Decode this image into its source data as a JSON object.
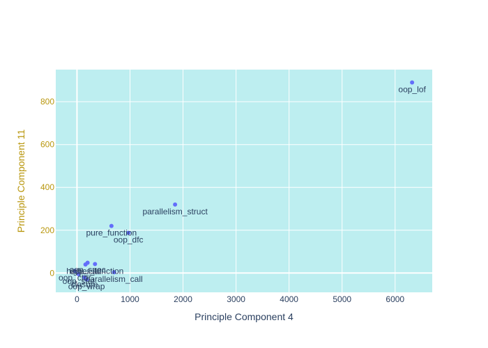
{
  "chart_data": {
    "type": "scatter",
    "xlabel": "Principle Component 4",
    "ylabel": "Principle Component 11",
    "xlim": [
      -400,
      6700
    ],
    "ylim": [
      -90,
      950
    ],
    "x_ticks": [
      0,
      1000,
      2000,
      3000,
      4000,
      5000,
      6000
    ],
    "y_ticks": [
      0,
      200,
      400,
      600,
      800
    ],
    "grid": true,
    "colors": {
      "plot_background": "#bdeef0",
      "grid": "#ffffff",
      "marker": "#636efa",
      "ytick_label": "#b8960c",
      "xtick_label": "#2a3f5f"
    },
    "points": [
      {
        "label": "oop_lof",
        "x": 6320,
        "y": 890
      },
      {
        "label": "parallelism_struct",
        "x": 1850,
        "y": 320
      },
      {
        "label": "pure_function",
        "x": 650,
        "y": 220
      },
      {
        "label": "oop_dfc",
        "x": 970,
        "y": 188
      },
      {
        "label": "higher_function",
        "x": 340,
        "y": 42
      },
      {
        "label": "oop_spec",
        "x": 200,
        "y": 48
      },
      {
        "label": "oop_call",
        "x": 160,
        "y": 40
      },
      {
        "label": "parallelism_call",
        "x": 700,
        "y": 4
      },
      {
        "label": "oop_ctor",
        "x": -40,
        "y": 10
      },
      {
        "label": "oop_stat",
        "x": 30,
        "y": -5
      },
      {
        "label": "oop_wrap",
        "x": 180,
        "y": -30
      },
      {
        "label": "closure",
        "x": 140,
        "y": -20
      }
    ]
  }
}
